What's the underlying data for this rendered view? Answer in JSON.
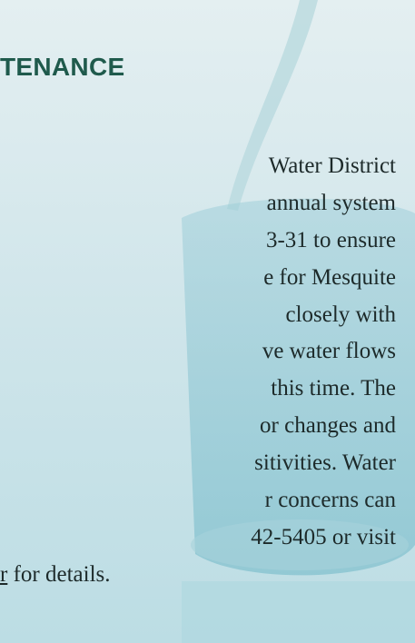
{
  "heading": "TENANCE",
  "body_lines": [
    "Water District",
    "annual system",
    "3-31 to ensure",
    "e for Mesquite",
    "closely with",
    "ve water flows",
    "this time. The",
    "or changes and",
    "sitivities. Water",
    "r concerns can",
    "42-5405 or visit"
  ],
  "last_line": {
    "link": "r",
    "rest": " for details."
  }
}
